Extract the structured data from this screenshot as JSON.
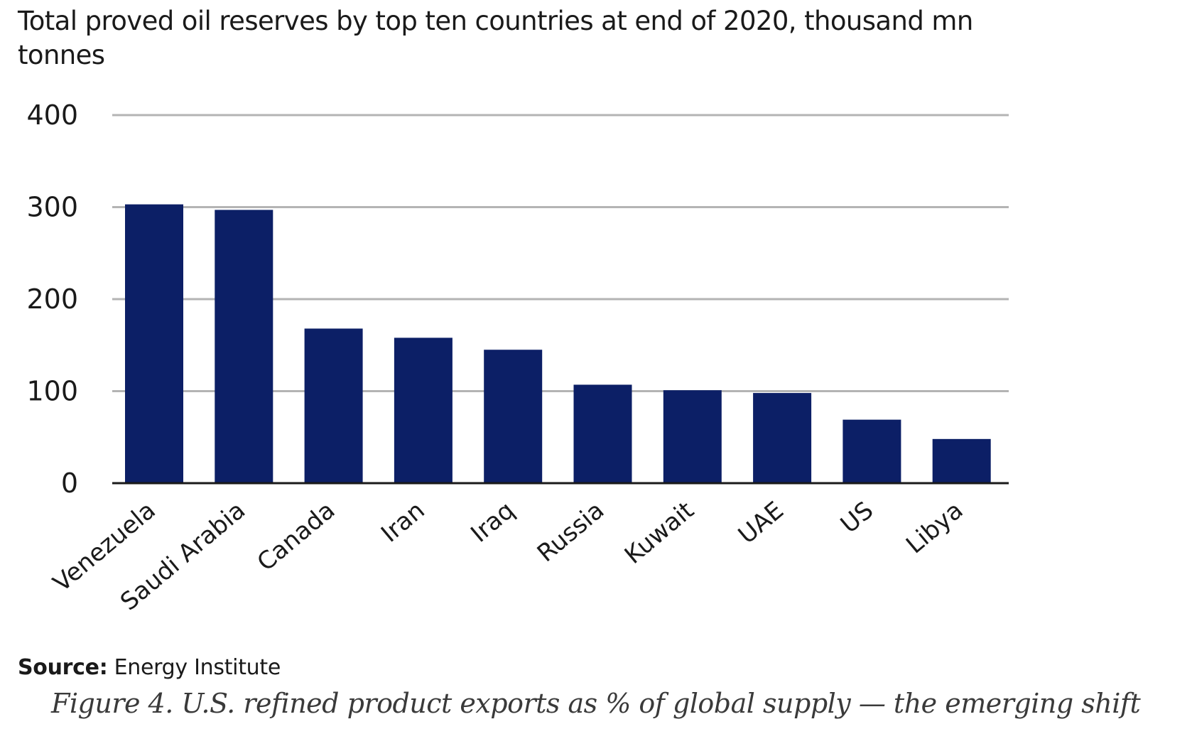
{
  "chart_data": {
    "type": "bar",
    "title": "Total proved oil reserves by top ten countries at end of 2020, thousand mn tonnes",
    "categories": [
      "Venezuela",
      "Saudi Arabia",
      "Canada",
      "Iran",
      "Iraq",
      "Russia",
      "Kuwait",
      "UAE",
      "US",
      "Libya"
    ],
    "values": [
      303,
      297,
      168,
      158,
      145,
      107,
      101,
      98,
      69,
      48
    ],
    "ylim": [
      0,
      400
    ],
    "yticks": [
      "0",
      "100",
      "200",
      "300",
      "400"
    ],
    "xlabel": "",
    "ylabel": "",
    "grid": true,
    "legend": "none",
    "bar_color": "#0c1f66"
  },
  "source": {
    "label": "Source:",
    "text": " Energy Institute"
  },
  "caption": "Figure 4. U.S. refined product exports as % of global supply — the emerging shift"
}
